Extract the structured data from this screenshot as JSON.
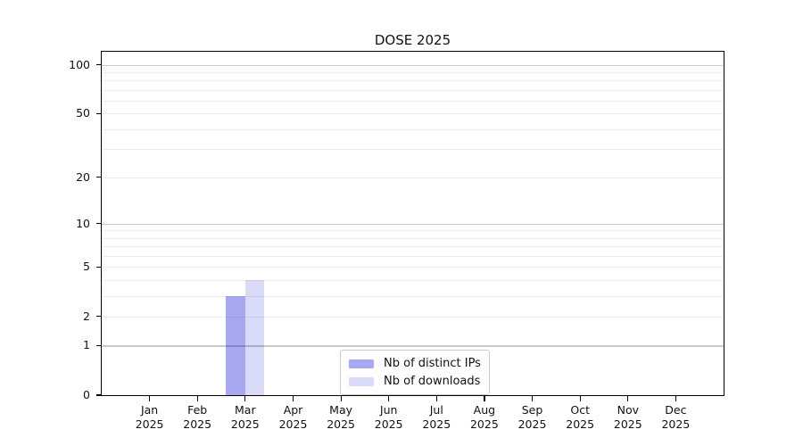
{
  "title": "DOSE 2025",
  "chart_data": {
    "type": "bar",
    "title": "DOSE 2025",
    "categories": [
      "Jan",
      "Feb",
      "Mar",
      "Apr",
      "May",
      "Jun",
      "Jul",
      "Aug",
      "Sep",
      "Oct",
      "Nov",
      "Dec"
    ],
    "category_year": "2025",
    "series": [
      {
        "name": "Nb of distinct IPs",
        "color": "#a8a8f2",
        "values": [
          0,
          0,
          3,
          0,
          0,
          0,
          0,
          0,
          0,
          0,
          0,
          0
        ]
      },
      {
        "name": "Nb of downloads",
        "color": "#d9d9f8",
        "values": [
          0,
          0,
          4,
          0,
          0,
          0,
          0,
          0,
          0,
          0,
          0,
          0
        ]
      }
    ],
    "xlabel": "",
    "ylabel": "",
    "yscale": "log1p",
    "ylim": [
      0,
      120
    ],
    "y_ticks": [
      0,
      1,
      2,
      5,
      10,
      20,
      50,
      100
    ],
    "y_major_gridlines": [
      1,
      10,
      100
    ],
    "y_minor_gridlines": [
      2,
      3,
      4,
      5,
      6,
      7,
      8,
      9,
      20,
      30,
      40,
      50,
      60,
      70,
      80,
      90
    ],
    "grid": true,
    "legend_position": "lower center"
  },
  "style": {
    "major_grid_color": "rgba(0,0,0,0.21)",
    "minor_grid_color": "rgba(0,0,0,0.07)",
    "axis_color": "#000000",
    "text_color": "#111111",
    "bar_color_distinct_ips": "#a8a8f2",
    "bar_color_downloads": "#d9d9f8",
    "legend_border_color": "#cbcbcb",
    "background_color": "#ffffff"
  }
}
